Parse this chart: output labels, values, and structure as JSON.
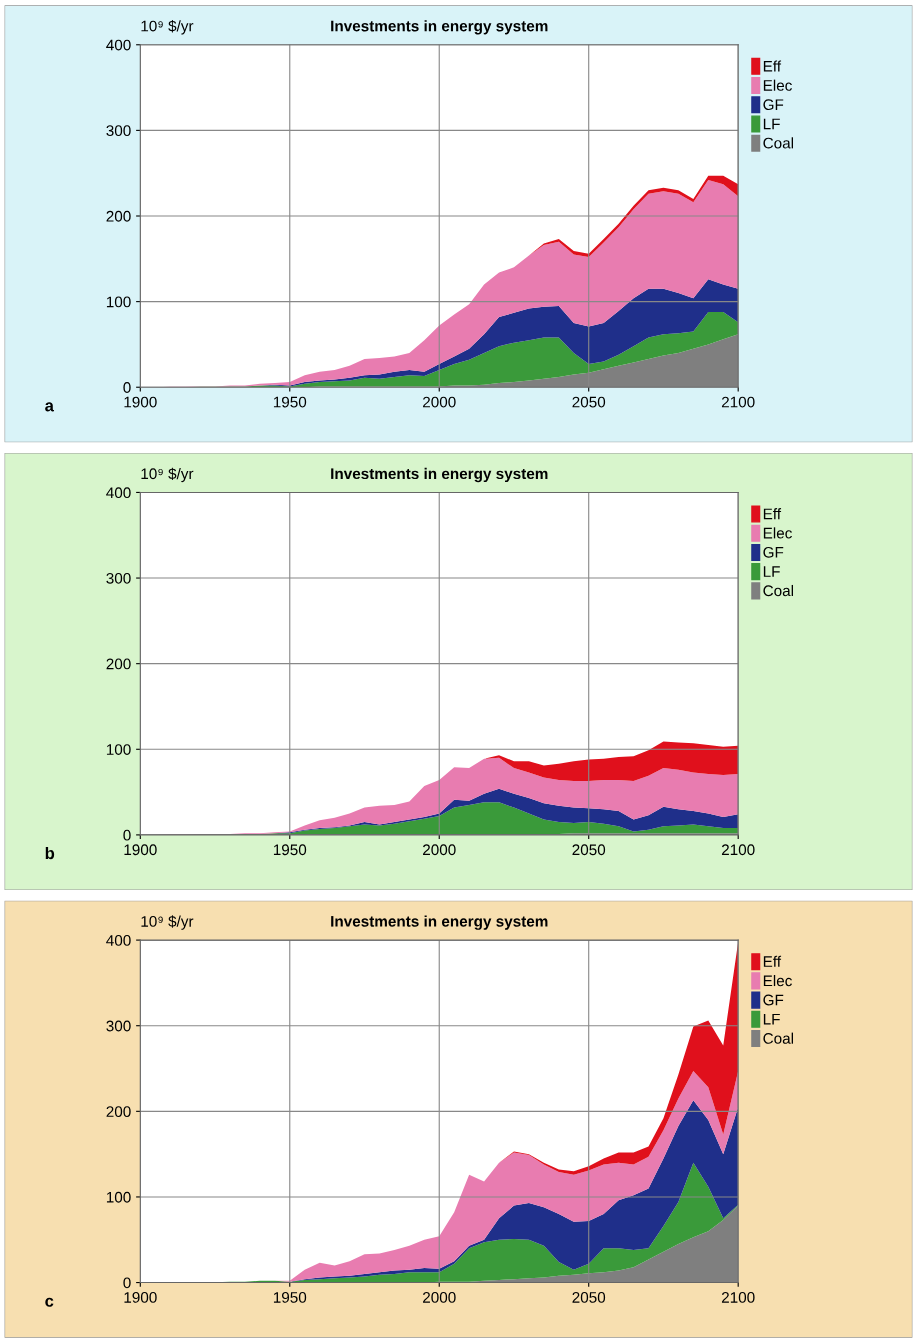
{
  "chart_data": [
    {
      "type": "area",
      "stacked": true,
      "title": "Investments in energy system",
      "ylabel": "10⁹ $/yr",
      "annotations": [
        "a"
      ],
      "x": [
        1900,
        1905,
        1910,
        1915,
        1920,
        1925,
        1930,
        1935,
        1940,
        1945,
        1950,
        1955,
        1960,
        1965,
        1970,
        1975,
        1980,
        1985,
        1990,
        1995,
        2000,
        2005,
        2010,
        2015,
        2020,
        2025,
        2030,
        2035,
        2040,
        2045,
        2050,
        2055,
        2060,
        2065,
        2070,
        2075,
        2080,
        2085,
        2090,
        2095,
        2100
      ],
      "series": [
        {
          "name": "Coal",
          "color": "#7f7f7f",
          "values": [
            0,
            0,
            0,
            0,
            0,
            0,
            0,
            0,
            0,
            0,
            0,
            0,
            1,
            1,
            1,
            1,
            1,
            1,
            1,
            1,
            1,
            2,
            2,
            3,
            5,
            6,
            8,
            10,
            12,
            15,
            17,
            21,
            25,
            29,
            33,
            37,
            40,
            45,
            50,
            56,
            62
          ]
        },
        {
          "name": "LF",
          "color": "#3a9a3a",
          "values": [
            0,
            0,
            0,
            0,
            0.5,
            0.5,
            1,
            1,
            2,
            2,
            1,
            4,
            5,
            6,
            7,
            10,
            9,
            11,
            13,
            12,
            19,
            25,
            30,
            37,
            43,
            46,
            47,
            48,
            46,
            25,
            10,
            9,
            13,
            19,
            25,
            25,
            23,
            20,
            38,
            32,
            14
          ]
        },
        {
          "name": "GF",
          "color": "#1f2f8a",
          "values": [
            0,
            0,
            0,
            0,
            0,
            0,
            0,
            0,
            0,
            1,
            1,
            2,
            2,
            2,
            3,
            3,
            5,
            6,
            6,
            5,
            7,
            9,
            13,
            22,
            34,
            35,
            37,
            36,
            37,
            35,
            44,
            45,
            51,
            56,
            57,
            53,
            47,
            39,
            38,
            32,
            39
          ]
        },
        {
          "name": "Elec",
          "color": "#e87cb0",
          "values": [
            0,
            0,
            0.5,
            0.5,
            0.5,
            0.5,
            1,
            1,
            2,
            2,
            4,
            8,
            10,
            11,
            14,
            19,
            19,
            18,
            20,
            37,
            45,
            49,
            52,
            58,
            52,
            53,
            62,
            72,
            75,
            80,
            81,
            94,
            98,
            104,
            111,
            114,
            116,
            112,
            116,
            117,
            108
          ]
        },
        {
          "name": "Eff",
          "color": "#e0101c",
          "values": [
            0,
            0,
            0,
            0,
            0,
            0,
            0,
            0,
            0,
            0,
            0,
            0,
            0,
            0,
            0,
            0,
            0,
            0,
            0,
            0,
            0,
            0,
            0,
            0,
            0,
            0,
            0,
            2,
            3,
            4,
            4,
            4,
            4,
            4,
            4,
            4,
            4,
            4,
            5,
            10,
            14
          ]
        }
      ],
      "xlim": [
        1900,
        2100
      ],
      "xticks": [
        1900,
        1950,
        2000,
        2050,
        2100
      ],
      "ylim": [
        0,
        400
      ],
      "yticks": [
        0,
        100,
        200,
        300,
        400
      ],
      "grid": true,
      "legend": "right"
    },
    {
      "type": "area",
      "stacked": true,
      "title": "Investments in energy system",
      "ylabel": "10⁹ $/yr",
      "annotations": [
        "b"
      ],
      "x": [
        1900,
        1905,
        1910,
        1915,
        1920,
        1925,
        1930,
        1935,
        1940,
        1945,
        1950,
        1955,
        1960,
        1965,
        1970,
        1975,
        1980,
        1985,
        1990,
        1995,
        2000,
        2005,
        2010,
        2015,
        2020,
        2025,
        2030,
        2035,
        2040,
        2045,
        2050,
        2055,
        2060,
        2065,
        2070,
        2075,
        2080,
        2085,
        2090,
        2095,
        2100
      ],
      "series": [
        {
          "name": "Coal",
          "color": "#7f7f7f",
          "values": [
            0,
            0,
            0,
            0,
            0,
            0,
            0,
            0,
            0,
            0,
            0,
            0,
            1,
            1,
            1,
            1,
            1,
            1,
            1,
            1,
            1,
            1,
            1,
            1,
            1,
            1,
            1,
            1,
            1,
            2,
            2,
            2,
            2,
            2,
            2,
            2,
            2,
            2,
            2,
            2,
            2
          ]
        },
        {
          "name": "LF",
          "color": "#3a9a3a",
          "values": [
            0,
            0,
            0,
            0,
            0.5,
            0.5,
            0.5,
            1,
            1,
            2,
            2,
            5,
            6,
            7,
            9,
            11,
            10,
            12,
            15,
            18,
            21,
            31,
            34,
            37,
            37,
            31,
            24,
            17,
            14,
            12,
            13,
            11,
            8,
            2,
            4,
            8,
            9,
            10,
            8,
            6,
            6
          ]
        },
        {
          "name": "GF",
          "color": "#1f2f8a",
          "values": [
            0,
            0,
            0,
            0,
            0,
            0,
            0,
            0,
            0,
            0,
            1,
            1,
            1,
            1,
            1,
            3,
            1,
            2,
            2,
            2,
            3,
            9,
            5,
            10,
            16,
            16,
            18,
            19,
            19,
            18,
            16,
            17,
            18,
            14,
            17,
            23,
            19,
            16,
            15,
            13,
            16
          ]
        },
        {
          "name": "Elec",
          "color": "#e87cb0",
          "values": [
            0,
            0,
            0.5,
            0.5,
            0.5,
            0.5,
            0.5,
            1,
            1,
            1,
            1,
            5,
            9,
            11,
            14,
            17,
            22,
            20,
            21,
            36,
            39,
            38,
            38,
            41,
            36,
            30,
            30,
            30,
            30,
            31,
            32,
            34,
            36,
            45,
            46,
            45,
            46,
            45,
            46,
            49,
            47
          ]
        },
        {
          "name": "Eff",
          "color": "#e0101c",
          "values": [
            0,
            0,
            0,
            0,
            0,
            0,
            0,
            0,
            0,
            0,
            0,
            0,
            0,
            0,
            0,
            0,
            0,
            0,
            0,
            0,
            0,
            0,
            0,
            0,
            3,
            8,
            13,
            14,
            19,
            23,
            25,
            25,
            27,
            29,
            30,
            31,
            32,
            34,
            34,
            33,
            33
          ]
        }
      ],
      "xlim": [
        1900,
        2100
      ],
      "xticks": [
        1900,
        1950,
        2000,
        2050,
        2100
      ],
      "ylim": [
        0,
        400
      ],
      "yticks": [
        0,
        100,
        200,
        300,
        400
      ],
      "grid": true,
      "legend": "right"
    },
    {
      "type": "area",
      "stacked": true,
      "title": "Investments in energy system",
      "ylabel": "10⁹ $/yr",
      "annotations": [
        "c"
      ],
      "x": [
        1900,
        1905,
        1910,
        1915,
        1920,
        1925,
        1930,
        1935,
        1940,
        1945,
        1950,
        1955,
        1960,
        1965,
        1970,
        1975,
        1980,
        1985,
        1990,
        1995,
        2000,
        2005,
        2010,
        2015,
        2020,
        2025,
        2030,
        2035,
        2040,
        2045,
        2050,
        2055,
        2060,
        2065,
        2070,
        2075,
        2080,
        2085,
        2090,
        2095,
        2100
      ],
      "series": [
        {
          "name": "Coal",
          "color": "#7f7f7f",
          "values": [
            0,
            0,
            0,
            0,
            0,
            0,
            0,
            0,
            0,
            0,
            0,
            0,
            0,
            0,
            0,
            0,
            0,
            0,
            0,
            0,
            1,
            1,
            1,
            2,
            3,
            4,
            5,
            6,
            8,
            9,
            11,
            12,
            14,
            18,
            27,
            36,
            45,
            53,
            60,
            73,
            90
          ]
        },
        {
          "name": "LF",
          "color": "#3a9a3a",
          "values": [
            0,
            0,
            0,
            0,
            0.5,
            0.5,
            1,
            1,
            2,
            2,
            1,
            3,
            4,
            5,
            6,
            7,
            9,
            10,
            12,
            12,
            11,
            21,
            39,
            45,
            47,
            47,
            45,
            37,
            16,
            6,
            11,
            28,
            26,
            20,
            13,
            30,
            49,
            87,
            52,
            2,
            1
          ]
        },
        {
          "name": "GF",
          "color": "#1f2f8a",
          "values": [
            0,
            0,
            0,
            0,
            0,
            0,
            0,
            0,
            0,
            0,
            0,
            1,
            2,
            2,
            2,
            3,
            3,
            4,
            3,
            5,
            4,
            3,
            3,
            3,
            25,
            39,
            43,
            45,
            56,
            56,
            50,
            40,
            56,
            64,
            70,
            79,
            89,
            73,
            78,
            75,
            114
          ]
        },
        {
          "name": "Elec",
          "color": "#e87cb0",
          "values": [
            0,
            0,
            0,
            0,
            0,
            0,
            0,
            0,
            0,
            0,
            1,
            11,
            17,
            13,
            17,
            23,
            22,
            24,
            28,
            33,
            38,
            57,
            83,
            68,
            65,
            62,
            56,
            50,
            49,
            55,
            59,
            58,
            44,
            36,
            37,
            33,
            32,
            34,
            38,
            23,
            42
          ]
        },
        {
          "name": "Eff",
          "color": "#e0101c",
          "values": [
            0,
            0,
            0,
            0,
            0,
            0,
            0,
            0,
            0,
            0,
            0,
            0,
            0,
            0,
            0,
            0,
            0,
            0,
            0,
            0,
            0,
            0,
            0,
            0,
            0,
            1,
            1,
            2,
            3,
            4,
            5,
            7,
            12,
            14,
            12,
            14,
            28,
            52,
            78,
            104,
            151
          ]
        }
      ],
      "xlim": [
        1900,
        2100
      ],
      "xticks": [
        1900,
        1950,
        2000,
        2050,
        2100
      ],
      "ylim": [
        0,
        400
      ],
      "yticks": [
        0,
        100,
        200,
        300,
        400
      ],
      "grid": true,
      "legend": "right"
    }
  ]
}
